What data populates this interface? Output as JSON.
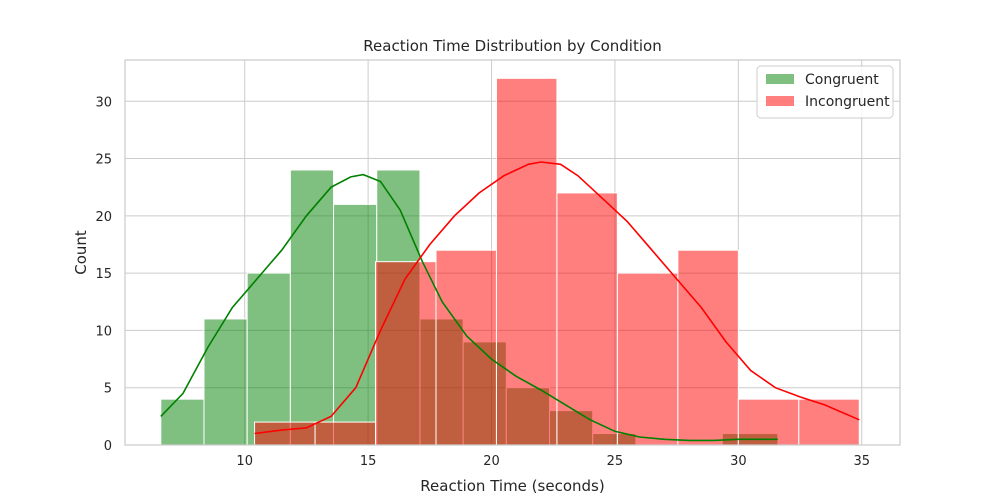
{
  "chart_data": {
    "type": "histogram",
    "title": "Reaction Time Distribution by Condition",
    "xlabel": "Reaction Time (seconds)",
    "ylabel": "Count",
    "xlim": [
      5.15,
      36.55
    ],
    "ylim": [
      0,
      33.6
    ],
    "xticks": [
      10,
      15,
      20,
      25,
      30,
      35
    ],
    "yticks": [
      0,
      5,
      10,
      15,
      20,
      25,
      30
    ],
    "grid": true,
    "legend_position": "top-right",
    "series": [
      {
        "name": "Congruent",
        "color": "#008000",
        "bins": [
          {
            "x0": 6.6,
            "x1": 8.35,
            "count": 4
          },
          {
            "x0": 8.35,
            "x1": 10.1,
            "count": 11
          },
          {
            "x0": 10.1,
            "x1": 11.85,
            "count": 15
          },
          {
            "x0": 11.85,
            "x1": 13.6,
            "count": 24
          },
          {
            "x0": 13.6,
            "x1": 15.35,
            "count": 21
          },
          {
            "x0": 15.35,
            "x1": 17.1,
            "count": 24
          },
          {
            "x0": 17.1,
            "x1": 18.85,
            "count": 11
          },
          {
            "x0": 18.85,
            "x1": 20.6,
            "count": 9
          },
          {
            "x0": 20.6,
            "x1": 22.35,
            "count": 5
          },
          {
            "x0": 22.35,
            "x1": 24.1,
            "count": 3
          },
          {
            "x0": 24.1,
            "x1": 25.85,
            "count": 1
          },
          {
            "x0": 25.85,
            "x1": 27.6,
            "count": 0
          },
          {
            "x0": 27.6,
            "x1": 29.35,
            "count": 0
          },
          {
            "x0": 29.35,
            "x1": 31.6,
            "count": 1
          }
        ],
        "kde": [
          [
            6.6,
            2.5
          ],
          [
            7.5,
            4.5
          ],
          [
            8.5,
            8.5
          ],
          [
            9.5,
            12
          ],
          [
            10.5,
            14.5
          ],
          [
            11.5,
            17
          ],
          [
            12.5,
            20
          ],
          [
            13.5,
            22.5
          ],
          [
            14.3,
            23.4
          ],
          [
            14.8,
            23.6
          ],
          [
            15.5,
            23
          ],
          [
            16.3,
            20.5
          ],
          [
            17.2,
            16
          ],
          [
            18,
            12.5
          ],
          [
            19,
            9.5
          ],
          [
            20,
            7.5
          ],
          [
            21,
            6
          ],
          [
            22,
            4.8
          ],
          [
            23,
            3.5
          ],
          [
            24,
            2.2
          ],
          [
            25,
            1.2
          ],
          [
            26,
            0.7
          ],
          [
            27,
            0.5
          ],
          [
            28,
            0.4
          ],
          [
            29,
            0.4
          ],
          [
            30,
            0.5
          ],
          [
            31.6,
            0.5
          ]
        ]
      },
      {
        "name": "Incongruent",
        "color": "#ff0000",
        "bins": [
          {
            "x0": 10.4,
            "x1": 12.85,
            "count": 2
          },
          {
            "x0": 12.85,
            "x1": 15.3,
            "count": 2
          },
          {
            "x0": 15.3,
            "x1": 17.75,
            "count": 16
          },
          {
            "x0": 17.75,
            "x1": 20.2,
            "count": 17
          },
          {
            "x0": 20.2,
            "x1": 22.65,
            "count": 32
          },
          {
            "x0": 22.65,
            "x1": 25.1,
            "count": 22
          },
          {
            "x0": 25.1,
            "x1": 27.55,
            "count": 15
          },
          {
            "x0": 27.55,
            "x1": 30.0,
            "count": 17
          },
          {
            "x0": 30.0,
            "x1": 32.45,
            "count": 4
          },
          {
            "x0": 32.45,
            "x1": 34.9,
            "count": 4
          }
        ],
        "kde": [
          [
            10.4,
            1.0
          ],
          [
            11.5,
            1.3
          ],
          [
            12.5,
            1.5
          ],
          [
            13.5,
            2.5
          ],
          [
            14.5,
            5
          ],
          [
            15.5,
            10
          ],
          [
            16.5,
            14.5
          ],
          [
            17.5,
            17.5
          ],
          [
            18.5,
            20
          ],
          [
            19.5,
            22
          ],
          [
            20.5,
            23.5
          ],
          [
            21.5,
            24.5
          ],
          [
            22,
            24.7
          ],
          [
            22.8,
            24.5
          ],
          [
            23.5,
            23.5
          ],
          [
            24.5,
            21.5
          ],
          [
            25.5,
            19.5
          ],
          [
            26.5,
            17
          ],
          [
            27.5,
            14.5
          ],
          [
            28.5,
            12
          ],
          [
            29.5,
            9
          ],
          [
            30.5,
            6.5
          ],
          [
            31.5,
            5
          ],
          [
            32.5,
            4.2
          ],
          [
            33.5,
            3.5
          ],
          [
            34.9,
            2.2
          ]
        ]
      }
    ]
  }
}
